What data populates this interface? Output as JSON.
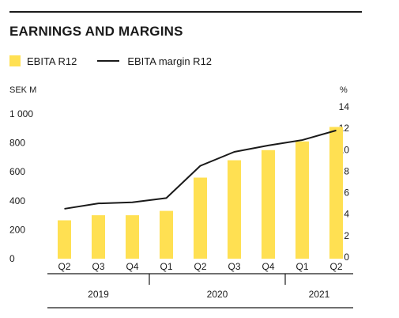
{
  "title": "EARNINGS AND MARGINS",
  "legend": {
    "bar_label": "EBITA R12",
    "line_label": "EBITA margin R12"
  },
  "units": {
    "left": "SEK M",
    "right": "%"
  },
  "colors": {
    "bar": "#ffe052",
    "line": "#1a1a1a",
    "text": "#1a1a1a"
  },
  "chart_data": {
    "type": "bar",
    "categories": [
      "Q2",
      "Q3",
      "Q4",
      "Q1",
      "Q2",
      "Q3",
      "Q4",
      "Q1",
      "Q2"
    ],
    "years": [
      {
        "label": "2019",
        "span": [
          0,
          2
        ]
      },
      {
        "label": "2020",
        "span": [
          3,
          6
        ]
      },
      {
        "label": "2021",
        "span": [
          7,
          8
        ]
      }
    ],
    "series": [
      {
        "name": "EBITA R12",
        "type": "bar",
        "axis": "left",
        "values": [
          265,
          300,
          300,
          330,
          560,
          680,
          750,
          810,
          910
        ]
      },
      {
        "name": "EBITA margin R12",
        "type": "line",
        "axis": "right",
        "values": [
          4.5,
          5.0,
          5.1,
          5.5,
          8.5,
          9.8,
          10.4,
          10.9,
          11.8
        ]
      }
    ],
    "y_left": {
      "label": "SEK M",
      "lim": [
        0,
        1000
      ],
      "ticks": [
        0,
        200,
        400,
        600,
        800,
        1000
      ],
      "tick_labels": [
        "0",
        "200",
        "400",
        "600",
        "800",
        "1 000"
      ]
    },
    "y_right": {
      "label": "%",
      "lim": [
        0,
        14
      ],
      "ticks": [
        0,
        2,
        4,
        6,
        8,
        10,
        12,
        14
      ],
      "tick_labels": [
        "0",
        "2",
        "4",
        "6",
        "8",
        "10",
        "12",
        "14"
      ]
    },
    "grid": false
  }
}
